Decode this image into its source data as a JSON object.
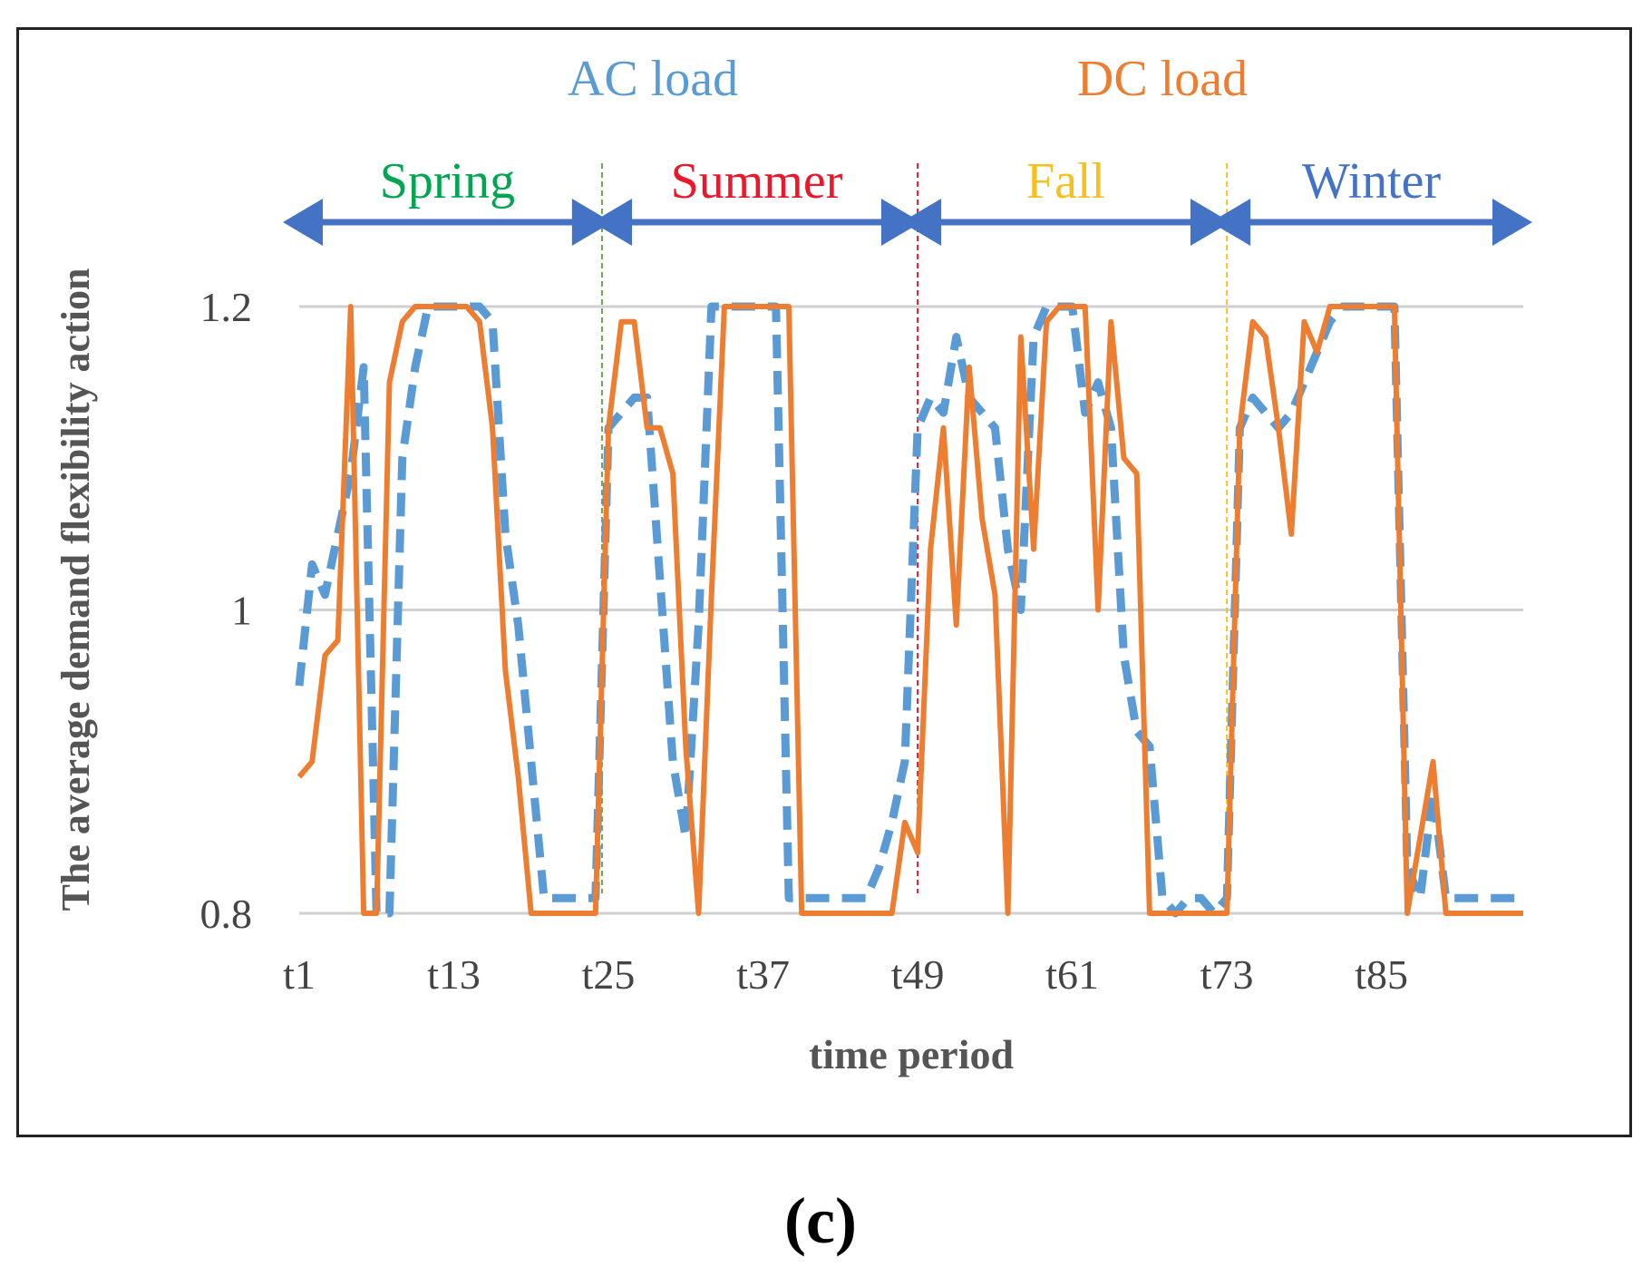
{
  "chart_data": {
    "type": "line",
    "panel_label": "(c)",
    "xlabel": "time period",
    "ylabel": "The average demand flexibility action",
    "ylim": [
      0.8,
      1.2
    ],
    "yticks": [
      {
        "value": 0.8,
        "label": "0.8"
      },
      {
        "value": 1.0,
        "label": "1"
      },
      {
        "value": 1.2,
        "label": "1.2"
      }
    ],
    "xlim": [
      1,
      96
    ],
    "xticks": [
      {
        "value": 1,
        "label": "t1"
      },
      {
        "value": 13,
        "label": "t13"
      },
      {
        "value": 25,
        "label": "t25"
      },
      {
        "value": 37,
        "label": "t37"
      },
      {
        "value": 49,
        "label": "t49"
      },
      {
        "value": 61,
        "label": "t61"
      },
      {
        "value": 73,
        "label": "t73"
      },
      {
        "value": 85,
        "label": "t85"
      }
    ],
    "grid": true,
    "legend": [
      {
        "name": "AC load",
        "color": "#5B9BD5",
        "dash": true
      },
      {
        "name": "DC load",
        "color": "#ED7D31",
        "dash": false
      }
    ],
    "seasons": [
      {
        "name": "Spring",
        "start": 1,
        "end": 24,
        "color": "#00A651"
      },
      {
        "name": "Summer",
        "start": 25,
        "end": 48,
        "color": "#E8192C"
      },
      {
        "name": "Fall",
        "start": 49,
        "end": 72,
        "color": "#F6C11F"
      },
      {
        "name": "Winter",
        "start": 73,
        "end": 96,
        "color": "#4472C4"
      }
    ],
    "arrow_color": "#4472C4",
    "dividers": [
      {
        "x": 24.5,
        "color": "#6AA84F"
      },
      {
        "x": 49,
        "color": "#E8192C"
      },
      {
        "x": 73,
        "color": "#F6C11F"
      }
    ],
    "series": [
      {
        "name": "AC load",
        "color": "#5B9BD5",
        "x": [
          1,
          2,
          3,
          4,
          5,
          6,
          7,
          8,
          9,
          10,
          11,
          12,
          13,
          14,
          15,
          16,
          17,
          18,
          19,
          20,
          21,
          22,
          23,
          24,
          25,
          26,
          27,
          28,
          29,
          30,
          31,
          32,
          33,
          34,
          35,
          36,
          37,
          38,
          39,
          40,
          41,
          42,
          43,
          44,
          45,
          46,
          47,
          48,
          49,
          50,
          51,
          52,
          53,
          54,
          55,
          56,
          57,
          58,
          59,
          60,
          61,
          62,
          63,
          64,
          65,
          66,
          67,
          68,
          69,
          70,
          71,
          72,
          73,
          74,
          75,
          76,
          77,
          78,
          79,
          80,
          81,
          82,
          83,
          84,
          85,
          86,
          87,
          88,
          89,
          90,
          91,
          92,
          93,
          94,
          95,
          96
        ],
        "values": [
          0.95,
          1.03,
          1.01,
          1.05,
          1.09,
          1.16,
          0.8,
          0.8,
          1.1,
          1.16,
          1.2,
          1.2,
          1.2,
          1.2,
          1.2,
          1.19,
          1.05,
          0.99,
          0.9,
          0.81,
          0.81,
          0.81,
          0.81,
          0.81,
          1.12,
          1.13,
          1.14,
          1.14,
          1.02,
          0.9,
          0.85,
          0.99,
          1.2,
          1.2,
          1.2,
          1.2,
          1.2,
          1.2,
          0.81,
          0.81,
          0.81,
          0.81,
          0.81,
          0.81,
          0.81,
          0.83,
          0.86,
          0.9,
          1.12,
          1.14,
          1.13,
          1.18,
          1.14,
          1.13,
          1.12,
          1.04,
          1.0,
          1.18,
          1.2,
          1.2,
          1.2,
          1.13,
          1.15,
          1.12,
          0.97,
          0.92,
          0.91,
          0.81,
          0.8,
          0.81,
          0.81,
          0.8,
          0.81,
          1.12,
          1.14,
          1.13,
          1.12,
          1.13,
          1.15,
          1.17,
          1.19,
          1.2,
          1.2,
          1.2,
          1.2,
          1.2,
          0.83,
          0.81,
          0.88,
          0.81,
          0.81,
          0.81,
          0.81,
          0.81,
          0.81,
          0.81
        ]
      },
      {
        "name": "DC load",
        "color": "#ED7D31",
        "x": [
          1,
          2,
          3,
          4,
          5,
          6,
          7,
          8,
          9,
          10,
          11,
          12,
          13,
          14,
          15,
          16,
          17,
          18,
          19,
          20,
          21,
          22,
          23,
          24,
          25,
          26,
          27,
          28,
          29,
          30,
          31,
          32,
          33,
          34,
          35,
          36,
          37,
          38,
          39,
          40,
          41,
          42,
          43,
          44,
          45,
          46,
          47,
          48,
          49,
          50,
          51,
          52,
          53,
          54,
          55,
          56,
          57,
          58,
          59,
          60,
          61,
          62,
          63,
          64,
          65,
          66,
          67,
          68,
          69,
          70,
          71,
          72,
          73,
          74,
          75,
          76,
          77,
          78,
          79,
          80,
          81,
          82,
          83,
          84,
          85,
          86,
          87,
          88,
          89,
          90,
          91,
          92,
          93,
          94,
          95,
          96
        ],
        "values": [
          0.89,
          0.9,
          0.97,
          0.98,
          1.2,
          0.8,
          0.8,
          1.15,
          1.19,
          1.2,
          1.2,
          1.2,
          1.2,
          1.2,
          1.19,
          1.12,
          0.96,
          0.89,
          0.8,
          0.8,
          0.8,
          0.8,
          0.8,
          0.8,
          1.12,
          1.19,
          1.19,
          1.12,
          1.12,
          1.09,
          0.91,
          0.8,
          1.01,
          1.2,
          1.2,
          1.2,
          1.2,
          1.2,
          1.2,
          0.8,
          0.8,
          0.8,
          0.8,
          0.8,
          0.8,
          0.8,
          0.8,
          0.86,
          0.84,
          1.04,
          1.12,
          0.99,
          1.16,
          1.06,
          1.01,
          0.8,
          1.18,
          1.04,
          1.19,
          1.2,
          1.2,
          1.2,
          1.0,
          1.19,
          1.1,
          1.09,
          0.8,
          0.8,
          0.8,
          0.8,
          0.8,
          0.8,
          0.8,
          1.12,
          1.19,
          1.18,
          1.12,
          1.05,
          1.19,
          1.17,
          1.2,
          1.2,
          1.2,
          1.2,
          1.2,
          1.2,
          0.8,
          0.85,
          0.9,
          0.8,
          0.8,
          0.8,
          0.8,
          0.8,
          0.8,
          0.8
        ]
      }
    ]
  }
}
